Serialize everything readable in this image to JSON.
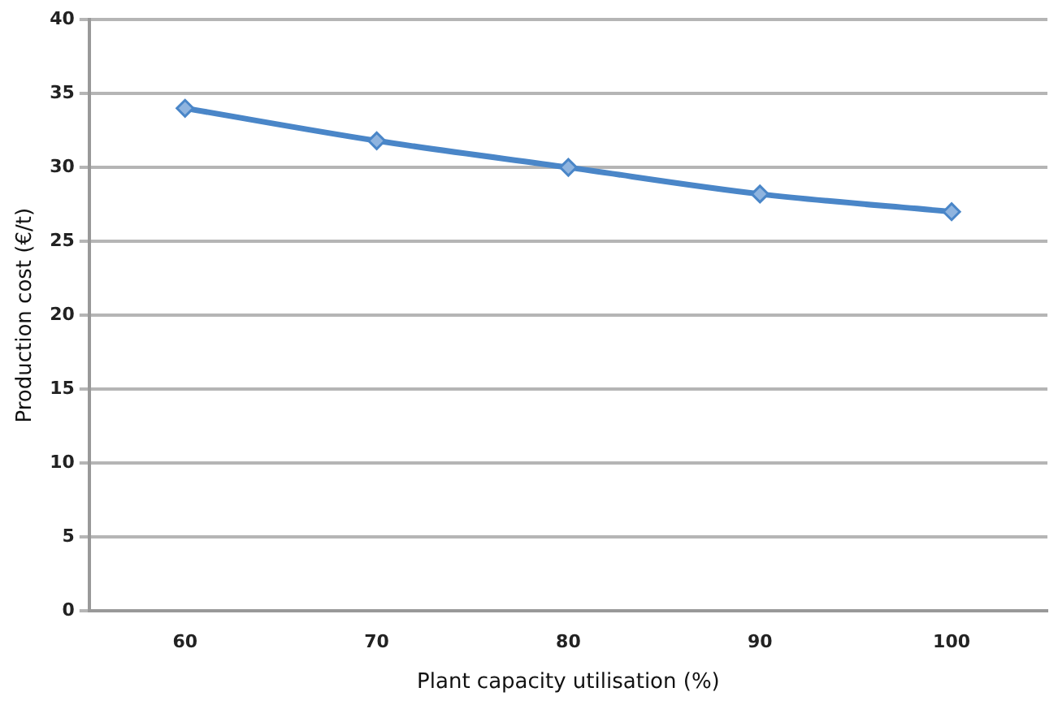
{
  "chart_data": {
    "type": "line",
    "xlabel": "Plant capacity utilisation (%)",
    "ylabel": "Production cost (€/t)",
    "categories": [
      "60",
      "70",
      "80",
      "90",
      "100"
    ],
    "series": [
      {
        "color": "#4a86c8",
        "values": [
          34,
          31.8,
          30,
          28.2,
          27
        ]
      }
    ],
    "ylim": [
      0,
      40
    ],
    "yticks": [
      0,
      5,
      10,
      15,
      20,
      25,
      30,
      35,
      40
    ],
    "grid": "y",
    "legend": false,
    "marker": "diamond",
    "line_style": "solid"
  }
}
